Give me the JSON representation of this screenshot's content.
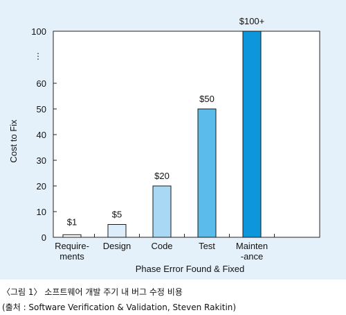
{
  "colors": {
    "panel_bg": "#e5f1fa",
    "plot_bg": "#ffffff",
    "axis": "#222222",
    "bar_fills": [
      "#ffffff",
      "#ddeefa",
      "#a9d8f4",
      "#5bbbea",
      "#0e96dc"
    ],
    "bar_stroke": "#1a1a1a"
  },
  "chart_data": {
    "type": "bar",
    "categories": [
      "Require-\nments",
      "Design",
      "Code",
      "Test",
      "Mainten\n-ance"
    ],
    "values": [
      1,
      5,
      20,
      50,
      100
    ],
    "data_labels": [
      "$1",
      "$5",
      "$20",
      "$50",
      "$100+"
    ],
    "xlabel": "Phase Error Found & Fixed",
    "ylabel": "Cost to Fix",
    "y_ticks": [
      {
        "value": 0,
        "label": "0"
      },
      {
        "value": 10,
        "label": "10"
      },
      {
        "value": 20,
        "label": "20"
      },
      {
        "value": 30,
        "label": "30"
      },
      {
        "value": 40,
        "label": "40"
      },
      {
        "value": 50,
        "label": "50"
      },
      {
        "value": 60,
        "label": "60"
      },
      {
        "value": 100,
        "label": "100"
      }
    ],
    "axis_break_label": "⋮",
    "ylim": [
      0,
      100
    ],
    "grid": false,
    "note": "y-axis is broken between 60 and 100"
  },
  "caption": {
    "line1": "〈그림 1〉 소프트웨어 개발 주기 내 버그 수정 비용",
    "line2": "(출처 : Software Verification & Validation, Steven Rakitin)"
  }
}
